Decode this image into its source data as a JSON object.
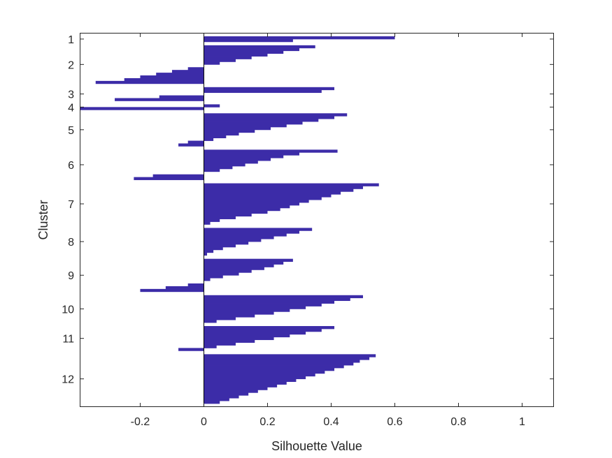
{
  "chart_data": {
    "type": "bar",
    "orientation": "horizontal",
    "title": "",
    "xlabel": "Silhouette Value",
    "ylabel": "Cluster",
    "xlim": [
      -0.39,
      1.1
    ],
    "xticks": [
      -0.2,
      0,
      0.2,
      0.4,
      0.6,
      0.8,
      1
    ],
    "xtick_labels": [
      "-0.2",
      "0",
      "0.2",
      "0.4",
      "0.6",
      "0.8",
      "1"
    ],
    "grid": false,
    "legend": "none",
    "bar_color": "#3c2ca8",
    "clusters": [
      {
        "label": "1",
        "values": [
          0.6,
          0.28
        ]
      },
      {
        "label": "2",
        "values": [
          0.35,
          0.3,
          0.25,
          0.2,
          0.15,
          0.1,
          0.05,
          0,
          -0.05,
          -0.1,
          -0.15,
          -0.2,
          -0.25,
          -0.34
        ]
      },
      {
        "label": "3",
        "values": [
          0.41,
          0.37,
          0,
          -0.14,
          -0.28
        ]
      },
      {
        "label": "4",
        "values": [
          0.05,
          -0.39
        ]
      },
      {
        "label": "5",
        "values": [
          0.45,
          0.41,
          0.36,
          0.31,
          0.26,
          0.21,
          0.16,
          0.11,
          0.07,
          0.03,
          -0.05,
          -0.08
        ]
      },
      {
        "label": "6",
        "values": [
          0.42,
          0.3,
          0.25,
          0.21,
          0.17,
          0.13,
          0.09,
          0.05,
          0,
          -0.16,
          -0.22
        ]
      },
      {
        "label": "7",
        "values": [
          0.55,
          0.5,
          0.47,
          0.43,
          0.4,
          0.37,
          0.33,
          0.3,
          0.27,
          0.24,
          0.2,
          0.15,
          0.1,
          0.05,
          0.02
        ]
      },
      {
        "label": "8",
        "values": [
          0.34,
          0.3,
          0.26,
          0.22,
          0.18,
          0.14,
          0.1,
          0.06,
          0.03,
          0.01
        ]
      },
      {
        "label": "9",
        "values": [
          0.28,
          0.25,
          0.22,
          0.19,
          0.15,
          0.11,
          0.06,
          0.02,
          0,
          -0.05,
          -0.12,
          -0.2
        ]
      },
      {
        "label": "10",
        "values": [
          0.5,
          0.46,
          0.41,
          0.37,
          0.32,
          0.27,
          0.22,
          0.16,
          0.1,
          0.04
        ]
      },
      {
        "label": "11",
        "values": [
          0.41,
          0.37,
          0.32,
          0.27,
          0.22,
          0.16,
          0.1,
          0.04,
          -0.08
        ]
      },
      {
        "label": "12",
        "values": [
          0.54,
          0.52,
          0.49,
          0.47,
          0.44,
          0.41,
          0.38,
          0.35,
          0.32,
          0.29,
          0.26,
          0.23,
          0.2,
          0.17,
          0.14,
          0.11,
          0.08,
          0.05
        ]
      }
    ]
  }
}
